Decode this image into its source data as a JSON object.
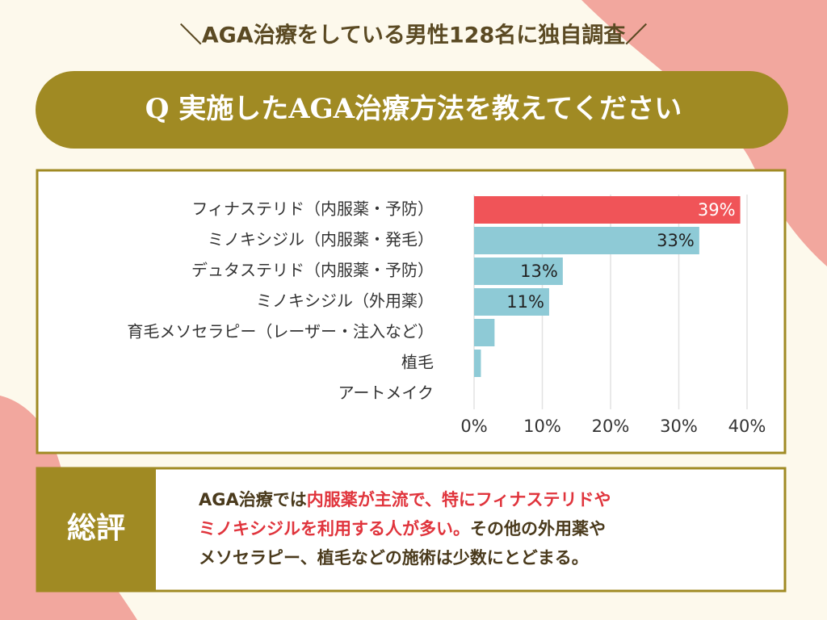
{
  "header": "＼AGA治療をしている男性128名に独自調査／",
  "question": "Q 実施したAGA治療方法を教えてください",
  "chart_data": {
    "type": "hbar",
    "categories": [
      "フィナステリド（内服薬・予防）",
      "ミノキシジル（内服薬・発毛）",
      "デュタステリド（内服薬・予防）",
      "ミノキシジル（外用薬）",
      "育毛メソセラピー（レーザー・注入など）",
      "植毛",
      "アートメイク"
    ],
    "values": [
      39,
      33,
      13,
      11,
      3,
      1,
      0
    ],
    "value_labels": [
      "39%",
      "33%",
      "13%",
      "11%",
      null,
      null,
      null
    ],
    "colors": [
      "#f05458",
      "#8ecad6",
      "#8ecad6",
      "#8ecad6",
      "#8ecad6",
      "#8ecad6",
      "#8ecad6"
    ],
    "xlim": [
      0,
      40
    ],
    "xticks": [
      {
        "value": 0,
        "label": "0%"
      },
      {
        "value": 10,
        "label": "10%"
      },
      {
        "value": 20,
        "label": "20%"
      },
      {
        "value": 30,
        "label": "30%"
      },
      {
        "value": 40,
        "label": "40%"
      }
    ],
    "grid": true
  },
  "summary": {
    "label": "総評",
    "lines": [
      [
        {
          "text": "AGA治療では",
          "highlight": false
        },
        {
          "text": "内服薬が主流で、特にフィナステリドや",
          "highlight": true
        }
      ],
      [
        {
          "text": "ミノキシジルを利用する人が多い。",
          "highlight": true
        },
        {
          "text": "その他の外用薬や",
          "highlight": false
        }
      ],
      [
        {
          "text": "メソセラピー、植毛などの施術は少数にとどまる。",
          "highlight": false
        }
      ]
    ]
  }
}
